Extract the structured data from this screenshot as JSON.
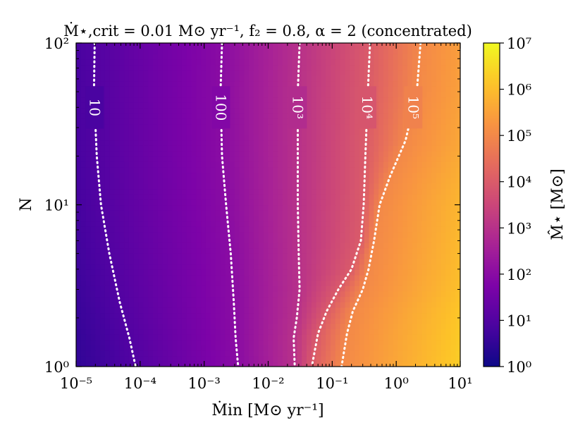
{
  "chart_data": {
    "type": "heatmap",
    "title": "Ṁ⋆,crit = 0.01 M⊙ yr⁻¹, f₂ = 0.8, α = 2 (concentrated)",
    "xlabel": "Ṁin [M⊙ yr⁻¹]",
    "ylabel": "N",
    "colorbar_label": "M̂⋆ [M⊙]",
    "x_scale": "log",
    "y_scale": "log",
    "colorbar_scale": "log",
    "xlim": [
      1e-05,
      10
    ],
    "ylim": [
      1,
      100
    ],
    "clim": [
      1,
      10000000
    ],
    "colormap": "plasma",
    "x_ticks": [
      {
        "value": 1e-05,
        "label": "10⁻⁵"
      },
      {
        "value": 0.0001,
        "label": "10⁻⁴"
      },
      {
        "value": 0.001,
        "label": "10⁻³"
      },
      {
        "value": 0.01,
        "label": "10⁻²"
      },
      {
        "value": 0.1,
        "label": "10⁻¹"
      },
      {
        "value": 1,
        "label": "10⁰"
      },
      {
        "value": 10,
        "label": "10¹"
      }
    ],
    "y_ticks": [
      {
        "value": 1,
        "label": "10⁰"
      },
      {
        "value": 10,
        "label": "10¹"
      },
      {
        "value": 100,
        "label": "10²"
      }
    ],
    "colorbar_ticks": [
      {
        "value": 1,
        "label": "10⁰"
      },
      {
        "value": 10,
        "label": "10¹"
      },
      {
        "value": 100,
        "label": "10²"
      },
      {
        "value": 1000,
        "label": "10³"
      },
      {
        "value": 10000,
        "label": "10⁴"
      },
      {
        "value": 100000,
        "label": "10⁵"
      },
      {
        "value": 1000000,
        "label": "10⁶"
      },
      {
        "value": 10000000,
        "label": "10⁷"
      }
    ],
    "contours": [
      {
        "level": 10,
        "label": "10",
        "points": [
          [
            1.95e-05,
            100
          ],
          [
            1.9e-05,
            50
          ],
          [
            2.1e-05,
            20
          ],
          [
            2.45e-05,
            10
          ],
          [
            3.3e-05,
            5
          ],
          [
            4.8e-05,
            2.5
          ],
          [
            6.8e-05,
            1.5
          ],
          [
            8.5e-05,
            1
          ]
        ]
      },
      {
        "level": 100,
        "label": "100",
        "points": [
          [
            0.0019,
            100
          ],
          [
            0.0018,
            50
          ],
          [
            0.0019,
            20
          ],
          [
            0.0022,
            10
          ],
          [
            0.0026,
            5
          ],
          [
            0.0029,
            2.5
          ],
          [
            0.0031,
            1.5
          ],
          [
            0.0034,
            1
          ]
        ]
      },
      {
        "level": 1000,
        "label": "10³",
        "points": [
          [
            0.031,
            100
          ],
          [
            0.029,
            50
          ],
          [
            0.029,
            20
          ],
          [
            0.029,
            10
          ],
          [
            0.03,
            5
          ],
          [
            0.031,
            3
          ],
          [
            0.028,
            2
          ],
          [
            0.025,
            1.5
          ],
          [
            0.026,
            1
          ]
        ]
      },
      {
        "level": 10000,
        "label": "10⁴",
        "points": [
          [
            0.39,
            100
          ],
          [
            0.36,
            50
          ],
          [
            0.33,
            20
          ],
          [
            0.31,
            10
          ],
          [
            0.28,
            6
          ],
          [
            0.2,
            4
          ],
          [
            0.125,
            3
          ],
          [
            0.082,
            2.2
          ],
          [
            0.06,
            1.6
          ],
          [
            0.048,
            1
          ]
        ]
      },
      {
        "level": 100000,
        "label": "10⁵",
        "points": [
          [
            2.4,
            100
          ],
          [
            2.1,
            50
          ],
          [
            1.4,
            25
          ],
          [
            0.8,
            15
          ],
          [
            0.55,
            10
          ],
          [
            0.45,
            6
          ],
          [
            0.37,
            4
          ],
          [
            0.3,
            3
          ],
          [
            0.21,
            2.2
          ],
          [
            0.17,
            1.6
          ],
          [
            0.14,
            1
          ]
        ]
      }
    ],
    "grid": false
  }
}
